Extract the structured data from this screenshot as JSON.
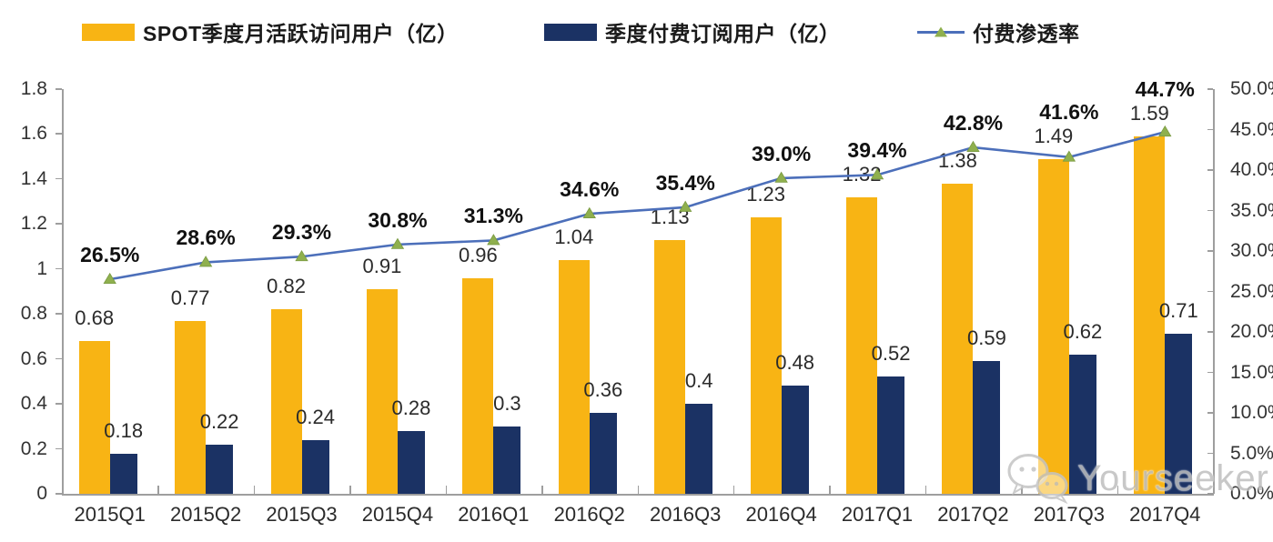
{
  "legend": [
    {
      "label": "SPOT季度月活跃访问用户（亿）",
      "color": "#F8B414"
    },
    {
      "label": "季度付费订阅用户（亿）",
      "color": "#1B3264"
    },
    {
      "label": "付费渗透率",
      "line_color": "#4C6FBA",
      "marker_color": "#8FB04E"
    }
  ],
  "chart_data": {
    "type": "combo-bar-line",
    "categories": [
      "2015Q1",
      "2015Q2",
      "2015Q3",
      "2015Q4",
      "2016Q1",
      "2016Q2",
      "2016Q3",
      "2016Q4",
      "2017Q1",
      "2017Q2",
      "2017Q3",
      "2017Q4"
    ],
    "series": [
      {
        "name": "SPOT季度月活跃访问用户（亿）",
        "type": "bar",
        "axis": "left",
        "color": "#F8B414",
        "values": [
          0.68,
          0.77,
          0.82,
          0.91,
          0.96,
          1.04,
          1.13,
          1.23,
          1.32,
          1.38,
          1.49,
          1.59
        ],
        "labels": [
          "0.68",
          "0.77",
          "0.82",
          "0.91",
          "0.96",
          "1.04",
          "1.13",
          "1.23",
          "1.32",
          "1.38",
          "1.49",
          "1.59"
        ]
      },
      {
        "name": "季度付费订阅用户（亿）",
        "type": "bar",
        "axis": "left",
        "color": "#1B3264",
        "values": [
          0.18,
          0.22,
          0.24,
          0.28,
          0.3,
          0.36,
          0.4,
          0.48,
          0.52,
          0.59,
          0.62,
          0.71
        ],
        "labels": [
          "0.18",
          "0.22",
          "0.24",
          "0.28",
          "0.3",
          "0.36",
          "0.4",
          "0.48",
          "0.52",
          "0.59",
          "0.62",
          "0.71"
        ]
      },
      {
        "name": "付费渗透率",
        "type": "line",
        "axis": "right",
        "line_color": "#4C6FBA",
        "marker_color": "#8FB04E",
        "values": [
          26.5,
          28.6,
          29.3,
          30.8,
          31.3,
          34.6,
          35.4,
          39.0,
          39.4,
          42.8,
          41.6,
          44.7
        ],
        "labels": [
          "26.5%",
          "28.6%",
          "29.3%",
          "30.8%",
          "31.3%",
          "34.6%",
          "35.4%",
          "39.0%",
          "39.4%",
          "42.8%",
          "41.6%",
          "44.7%"
        ]
      }
    ],
    "left_axis": {
      "min": 0,
      "max": 1.8,
      "tick_labels": [
        "0",
        "0.2",
        "0.4",
        "0.6",
        "0.8",
        "1",
        "1.2",
        "1.4",
        "1.6",
        "1.8"
      ]
    },
    "right_axis": {
      "min": 0,
      "max": 50,
      "tick_labels": [
        "0.0%",
        "5.0%",
        "10.0%",
        "15.0%",
        "20.0%",
        "25.0%",
        "30.0%",
        "35.0%",
        "40.0%",
        "45.0%",
        "50.0%"
      ]
    },
    "grid": "off",
    "legend_position": "top"
  },
  "watermark": {
    "text": "Yourseeker",
    "icon": "wechat-icon"
  }
}
